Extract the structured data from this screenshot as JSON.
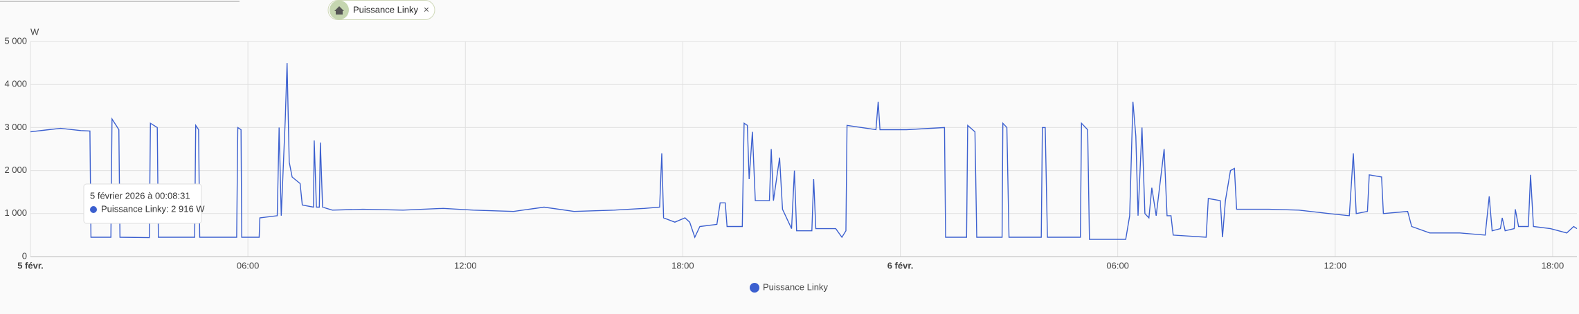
{
  "header": {
    "chip": "Puissance Linky"
  },
  "chart_data": {
    "type": "line",
    "y_unit": "W",
    "xlim": [
      0,
      42.67
    ],
    "ylim": [
      0,
      5000
    ],
    "xticks": [
      {
        "value": 0,
        "label": "5 févr."
      },
      {
        "value": 6,
        "label": "06:00"
      },
      {
        "value": 12,
        "label": "12:00"
      },
      {
        "value": 18,
        "label": "18:00"
      },
      {
        "value": 24,
        "label": "6 févr."
      },
      {
        "value": 30,
        "label": "06:00"
      },
      {
        "value": 36,
        "label": "12:00"
      },
      {
        "value": 42,
        "label": "18:00"
      }
    ],
    "yticks": [
      0,
      {
        "value": 1000,
        "label": "1 000"
      },
      {
        "value": 2000,
        "label": "2 000"
      },
      {
        "value": 3000,
        "label": "3 000"
      },
      {
        "value": 4000,
        "label": "4 000"
      },
      {
        "value": 5000,
        "label": "5 000"
      }
    ],
    "grid": true,
    "x": [
      0,
      0.5,
      0.83,
      1.39,
      1.64,
      1.67,
      2.22,
      2.25,
      2.44,
      2.47,
      3.28,
      3.31,
      3.5,
      3.53,
      4.53,
      4.56,
      4.64,
      4.67,
      5.69,
      5.72,
      5.81,
      5.83,
      6.31,
      6.33,
      6.81,
      6.86,
      6.92,
      7.03,
      7.08,
      7.14,
      7.22,
      7.44,
      7.5,
      7.81,
      7.83,
      7.89,
      7.97,
      8.0,
      8.06,
      8.33,
      9.17,
      10.28,
      11.39,
      12.22,
      13.33,
      14.17,
      15,
      16.11,
      16.94,
      17.36,
      17.42,
      17.47,
      17.78,
      18.06,
      18.19,
      18.33,
      18.47,
      18.94,
      19.03,
      19.17,
      19.22,
      19.64,
      19.69,
      19.78,
      19.83,
      19.92,
      20,
      20.39,
      20.44,
      20.5,
      20.67,
      20.75,
      21,
      21.08,
      21.14,
      21.56,
      21.61,
      21.67,
      22.22,
      22.39,
      22.5,
      22.53,
      23.33,
      23.39,
      23.44,
      24.17,
      25.22,
      25.25,
      25.83,
      25.86,
      26.06,
      26.11,
      26.81,
      26.83,
      26.94,
      27,
      27.89,
      27.92,
      28,
      28.06,
      28.97,
      29,
      29.17,
      29.22,
      30.22,
      30.33,
      30.42,
      30.5,
      30.56,
      30.67,
      30.75,
      30.86,
      30.94,
      31.06,
      31.28,
      31.36,
      31.47,
      31.53,
      32.44,
      32.5,
      32.83,
      32.89,
      32.97,
      33.11,
      33.22,
      33.28,
      34.17,
      35,
      35.83,
      36.39,
      36.5,
      36.58,
      36.89,
      36.94,
      37.28,
      37.33,
      38,
      38.11,
      38.61,
      39.44,
      40.14,
      40.25,
      40.33,
      40.56,
      40.61,
      40.69,
      40.94,
      40.97,
      41.06,
      41.33,
      41.39,
      41.47,
      41.94,
      42.39,
      42.58,
      42.67
    ],
    "series": [
      {
        "name": "Puissance Linky",
        "color": "#3b5fcf",
        "values": [
          2900,
          2950,
          2980,
          2930,
          2920,
          450,
          450,
          3200,
          2950,
          450,
          440,
          3100,
          3000,
          450,
          450,
          3050,
          2950,
          450,
          450,
          3000,
          2950,
          450,
          450,
          900,
          950,
          3000,
          950,
          3200,
          4500,
          2200,
          1850,
          1700,
          1200,
          1150,
          2700,
          1150,
          1150,
          2650,
          1150,
          1080,
          1100,
          1080,
          1120,
          1080,
          1050,
          1150,
          1050,
          1080,
          1120,
          1150,
          2400,
          900,
          800,
          900,
          800,
          450,
          700,
          750,
          1250,
          1250,
          700,
          700,
          3100,
          3050,
          1800,
          2900,
          1300,
          1300,
          2500,
          1300,
          2300,
          1100,
          650,
          2000,
          600,
          600,
          1800,
          650,
          650,
          450,
          600,
          3050,
          2950,
          3600,
          2950,
          2950,
          3000,
          450,
          450,
          3050,
          2900,
          450,
          450,
          3100,
          3000,
          450,
          450,
          3000,
          3000,
          450,
          450,
          3100,
          2950,
          400,
          400,
          950,
          3600,
          2800,
          950,
          3000,
          1000,
          900,
          1600,
          950,
          2500,
          950,
          950,
          500,
          450,
          1350,
          1300,
          450,
          1300,
          2000,
          2050,
          1100,
          1100,
          1080,
          1000,
          950,
          2400,
          1000,
          1050,
          1900,
          1850,
          1000,
          1050,
          700,
          550,
          550,
          500,
          1400,
          600,
          650,
          900,
          600,
          650,
          1100,
          700,
          700,
          1900,
          700,
          650,
          550,
          700,
          650
        ]
      }
    ],
    "tooltip": {
      "title": "5 février 2026 à 00:08:31",
      "label": "Puissance Linky: 2 916 W"
    }
  }
}
